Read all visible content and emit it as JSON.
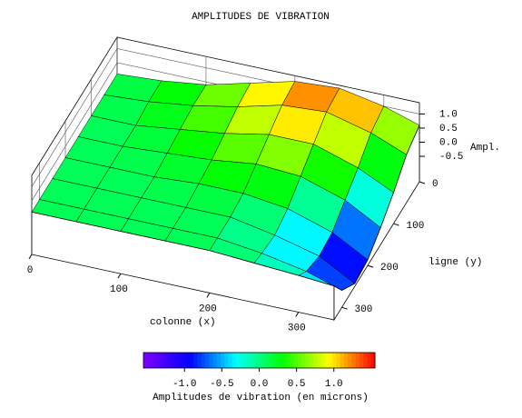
{
  "chart_data": {
    "type": "surface",
    "title": "AMPLITUDES DE VIBRATION",
    "xlabel": "colonne (x)",
    "ylabel": "ligne (y)",
    "zlabel": "Ampl.",
    "x": [
      0,
      50,
      100,
      150,
      200,
      250,
      300,
      340
    ],
    "y": [
      0,
      50,
      100,
      150,
      200,
      250,
      300,
      330
    ],
    "z": [
      [
        0.1,
        0.2,
        0.4,
        0.8,
        1.2,
        1.3,
        1.0,
        0.6
      ],
      [
        0.1,
        0.2,
        0.4,
        0.7,
        1.1,
        1.2,
        0.8,
        0.3
      ],
      [
        0.1,
        0.1,
        0.3,
        0.5,
        0.8,
        0.8,
        0.3,
        -0.3
      ],
      [
        0.1,
        0.1,
        0.2,
        0.3,
        0.5,
        0.4,
        -0.1,
        -0.8
      ],
      [
        0.1,
        0.1,
        0.1,
        0.2,
        0.2,
        0.0,
        -0.5,
        -1.2
      ],
      [
        0.1,
        0.1,
        0.1,
        0.1,
        0.1,
        -0.2,
        -0.6,
        -1.3
      ],
      [
        0.1,
        0.1,
        0.1,
        0.1,
        0.1,
        -0.1,
        -0.4,
        -0.8
      ],
      [
        0.1,
        0.1,
        0.1,
        0.1,
        0.1,
        0.0,
        -0.1,
        -0.2
      ]
    ],
    "xlim": [
      0,
      340
    ],
    "ylim": [
      0,
      330
    ],
    "zlim": [
      -1.4,
      1.4
    ],
    "xticks": [
      0,
      100,
      200,
      300
    ],
    "yticks": [
      0,
      100,
      200,
      300
    ],
    "zticks": [
      {
        "value": 1,
        "label": "1.0"
      },
      0.5,
      {
        "value": 0,
        "label": "0.0"
      },
      -0.5
    ],
    "colormap": [
      "#7f00ff",
      "#0000ff",
      "#00ffff",
      "#00ff00",
      "#ffff00",
      "#ff0000"
    ],
    "colorbar": {
      "label": "Amplitudes de vibration (en microns)",
      "lim": [
        -1.55,
        1.55
      ],
      "ticks": [
        {
          "value": -1,
          "label": "-1.0"
        },
        -0.5,
        {
          "value": 0,
          "label": "0.0"
        },
        0.5,
        {
          "value": 1,
          "label": "1.0"
        }
      ]
    }
  }
}
